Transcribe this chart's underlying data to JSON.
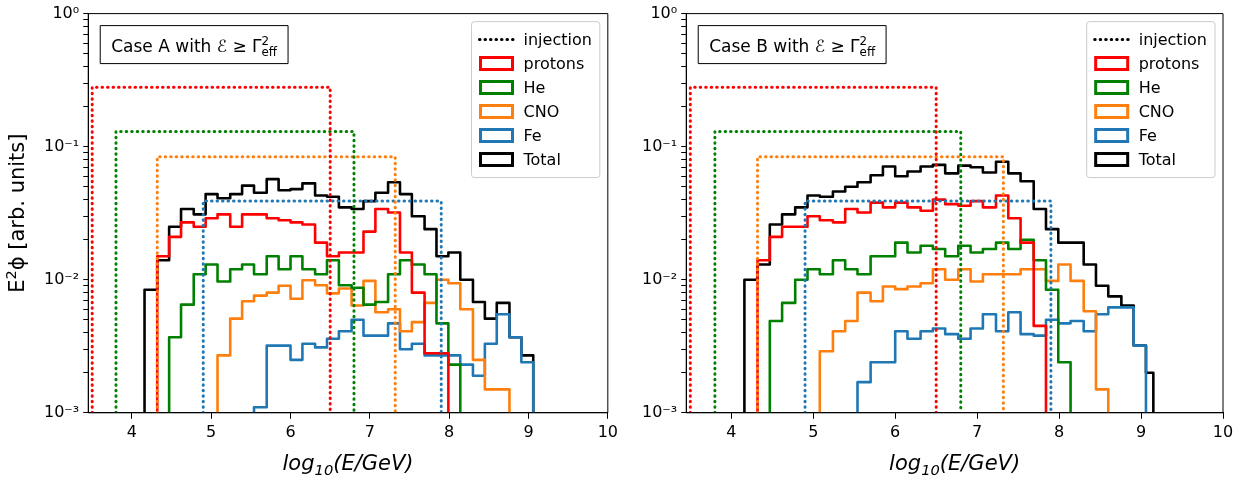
{
  "chart_data": [
    {
      "type": "histogram",
      "xlabel": "log$_{10}$(E/GeV)",
      "ylabel": "E$^{2}$ϕ [arb. units]",
      "annotations": [
        "Case A with ℰ ≥ Γ$^{2}$$_{eff}$"
      ],
      "legend": "top right",
      "log": "y",
      "xlim": [
        3.45,
        10
      ],
      "xticks": [
        4,
        5,
        6,
        7,
        8,
        9,
        10
      ],
      "ylim": [
        0.001,
        1
      ],
      "yticks": [
        {
          "value": 0.001,
          "label": "10⁻³"
        },
        {
          "value": 0.002,
          "label": null
        },
        {
          "value": 0.003,
          "label": null
        },
        {
          "value": 0.004,
          "label": null
        },
        {
          "value": 0.005,
          "label": null
        },
        {
          "value": 0.006,
          "label": null
        },
        {
          "value": 0.007,
          "label": null
        },
        {
          "value": 0.008,
          "label": null
        },
        {
          "value": 0.009,
          "label": null
        },
        {
          "value": 0.01,
          "label": "10⁻²"
        },
        {
          "value": 0.02,
          "label": null
        },
        {
          "value": 0.03,
          "label": null
        },
        {
          "value": 0.04,
          "label": null
        },
        {
          "value": 0.05,
          "label": null
        },
        {
          "value": 0.06,
          "label": null
        },
        {
          "value": 0.07,
          "label": null
        },
        {
          "value": 0.08,
          "label": null
        },
        {
          "value": 0.09,
          "label": null
        },
        {
          "value": 0.1,
          "label": "10⁻¹"
        },
        {
          "value": 0.2,
          "label": null
        },
        {
          "value": 0.3,
          "label": null
        },
        {
          "value": 0.4,
          "label": null
        },
        {
          "value": 0.5,
          "label": null
        },
        {
          "value": 0.6,
          "label": null
        },
        {
          "value": 0.7,
          "label": null
        },
        {
          "value": 0.8,
          "label": null
        },
        {
          "value": 0.9,
          "label": null
        },
        {
          "value": 1,
          "label": "10⁰"
        }
      ],
      "series": [
        {
          "name": "injection",
          "type": "line",
          "line_style": "dotted",
          "color": "#000000"
        },
        {
          "type": "line",
          "line_style": "dotted",
          "color": "#ff0000",
          "x": [
            3.5,
            3.5,
            6.5,
            6.5
          ],
          "values": [
            0.001,
            0.28,
            0.28,
            0.001
          ]
        },
        {
          "type": "line",
          "line_style": "dotted",
          "color": "#008000",
          "x": [
            3.8,
            3.8,
            6.8,
            6.8
          ],
          "values": [
            0.001,
            0.13,
            0.13,
            0.001
          ]
        },
        {
          "type": "line",
          "line_style": "dotted",
          "color": "#ff7f0e",
          "x": [
            4.32,
            4.32,
            7.32,
            7.32
          ],
          "values": [
            0.001,
            0.084,
            0.084,
            0.001
          ]
        },
        {
          "type": "line",
          "line_style": "dotted",
          "color": "#1f77b4",
          "x": [
            4.9,
            4.9,
            7.9,
            7.9
          ],
          "values": [
            0.001,
            0.039,
            0.039,
            0.001
          ]
        },
        {
          "name": "protons",
          "color": "#ff0000",
          "bins": [
            4.32,
            4.47,
            4.62,
            4.78,
            4.93,
            5.08,
            5.24,
            5.39,
            5.54,
            5.7,
            5.85,
            6.0,
            6.15,
            6.31,
            6.46,
            6.61,
            6.77,
            6.92,
            7.07,
            7.23,
            7.38,
            7.53,
            7.69,
            7.84,
            7.99
          ],
          "values": [
            0.015,
            0.021,
            0.027,
            0.025,
            0.029,
            0.031,
            0.025,
            0.031,
            0.031,
            0.029,
            0.028,
            0.027,
            0.026,
            0.019,
            0.015,
            0.016,
            0.016,
            0.023,
            0.034,
            0.032,
            0.016,
            0.008,
            0.0028,
            0.0028
          ]
        },
        {
          "name": "He",
          "color": "#008000",
          "bins": [
            4.47,
            4.62,
            4.78,
            4.93,
            5.08,
            5.24,
            5.39,
            5.54,
            5.7,
            5.85,
            6.0,
            6.15,
            6.31,
            6.46,
            6.61,
            6.77,
            6.92,
            7.07,
            7.23,
            7.38,
            7.53,
            7.69,
            7.84,
            7.99,
            8.14
          ],
          "values": [
            0.0037,
            0.0065,
            0.011,
            0.013,
            0.0097,
            0.012,
            0.013,
            0.011,
            0.015,
            0.012,
            0.015,
            0.012,
            0.011,
            0.014,
            0.0091,
            0.0087,
            0.0065,
            0.0068,
            0.011,
            0.014,
            0.013,
            0.011,
            0.0047,
            0.0023
          ]
        },
        {
          "name": "CNO",
          "color": "#ff7f0e",
          "bins": [
            5.08,
            5.24,
            5.39,
            5.54,
            5.7,
            5.85,
            6.0,
            6.15,
            6.31,
            6.46,
            6.61,
            6.77,
            6.92,
            7.07,
            7.23,
            7.38,
            7.53,
            7.69,
            7.84,
            7.99,
            8.14,
            8.3,
            8.45,
            8.6,
            8.76
          ],
          "values": [
            0.0027,
            0.0051,
            0.0069,
            0.0076,
            0.008,
            0.009,
            0.0072,
            0.0099,
            0.0091,
            0.0079,
            0.0086,
            0.0064,
            0.0098,
            0.0057,
            0.006,
            0.0041,
            0.0048,
            0.0067,
            0.01,
            0.0094,
            0.006,
            0.0025,
            0.0015,
            0.0015
          ]
        },
        {
          "name": "Fe",
          "color": "#1f77b4",
          "bins": [
            5.54,
            5.7,
            5.85,
            6.0,
            6.15,
            6.31,
            6.46,
            6.61,
            6.77,
            6.92,
            7.07,
            7.23,
            7.38,
            7.53,
            7.69,
            7.84,
            7.99,
            8.14,
            8.3,
            8.45,
            8.6,
            8.76,
            8.91,
            9.06
          ],
          "values": [
            0.0011,
            0.0032,
            0.0032,
            0.0025,
            0.0033,
            0.0031,
            0.0036,
            0.0041,
            0.005,
            0.0038,
            0.0038,
            0.0047,
            0.003,
            0.0033,
            0.0027,
            0.0027,
            0.0027,
            0.0023,
            0.0019,
            0.0033,
            0.0055,
            0.0037,
            0.0024
          ]
        },
        {
          "name": "Total",
          "color": "#000000",
          "bins": [
            4.16,
            4.32,
            4.47,
            4.62,
            4.78,
            4.93,
            5.08,
            5.24,
            5.39,
            5.54,
            5.7,
            5.85,
            6.0,
            6.15,
            6.31,
            6.46,
            6.61,
            6.77,
            6.92,
            7.07,
            7.23,
            7.38,
            7.53,
            7.69,
            7.84,
            7.99,
            8.14,
            8.3,
            8.45,
            8.6,
            8.76,
            8.91,
            9.06
          ],
          "values": [
            0.0084,
            0.014,
            0.025,
            0.034,
            0.031,
            0.044,
            0.041,
            0.044,
            0.051,
            0.045,
            0.057,
            0.047,
            0.048,
            0.053,
            0.043,
            0.042,
            0.035,
            0.034,
            0.039,
            0.045,
            0.054,
            0.044,
            0.03,
            0.024,
            0.015,
            0.016,
            0.01,
            0.0068,
            0.0051,
            0.0067,
            0.0037,
            0.0027
          ]
        }
      ]
    },
    {
      "type": "histogram",
      "xlabel": "log$_{10}$(E/GeV)",
      "annotations": [
        "Case B with ℰ ≥ Γ$^{2}$$_{eff}$"
      ],
      "legend": "top right",
      "log": "y",
      "xlim": [
        3.45,
        10
      ],
      "xticks": [
        4,
        5,
        6,
        7,
        8,
        9,
        10
      ],
      "ylim": [
        0.001,
        1
      ],
      "yticks": [
        {
          "value": 0.001,
          "label": "10⁻³"
        },
        {
          "value": 0.002,
          "label": null
        },
        {
          "value": 0.003,
          "label": null
        },
        {
          "value": 0.004,
          "label": null
        },
        {
          "value": 0.005,
          "label": null
        },
        {
          "value": 0.006,
          "label": null
        },
        {
          "value": 0.007,
          "label": null
        },
        {
          "value": 0.008,
          "label": null
        },
        {
          "value": 0.009,
          "label": null
        },
        {
          "value": 0.01,
          "label": "10⁻²"
        },
        {
          "value": 0.02,
          "label": null
        },
        {
          "value": 0.03,
          "label": null
        },
        {
          "value": 0.04,
          "label": null
        },
        {
          "value": 0.05,
          "label": null
        },
        {
          "value": 0.06,
          "label": null
        },
        {
          "value": 0.07,
          "label": null
        },
        {
          "value": 0.08,
          "label": null
        },
        {
          "value": 0.09,
          "label": null
        },
        {
          "value": 0.1,
          "label": "10⁻¹"
        },
        {
          "value": 0.2,
          "label": null
        },
        {
          "value": 0.3,
          "label": null
        },
        {
          "value": 0.4,
          "label": null
        },
        {
          "value": 0.5,
          "label": null
        },
        {
          "value": 0.6,
          "label": null
        },
        {
          "value": 0.7,
          "label": null
        },
        {
          "value": 0.8,
          "label": null
        },
        {
          "value": 0.9,
          "label": null
        },
        {
          "value": 1,
          "label": "10⁰"
        }
      ],
      "series": [
        {
          "name": "injection",
          "type": "line",
          "line_style": "dotted",
          "color": "#000000"
        },
        {
          "type": "line",
          "line_style": "dotted",
          "color": "#ff0000",
          "x": [
            3.5,
            3.5,
            6.5,
            6.5
          ],
          "values": [
            0.001,
            0.28,
            0.28,
            0.001
          ]
        },
        {
          "type": "line",
          "line_style": "dotted",
          "color": "#008000",
          "x": [
            3.8,
            3.8,
            6.8,
            6.8
          ],
          "values": [
            0.001,
            0.13,
            0.13,
            0.001
          ]
        },
        {
          "type": "line",
          "line_style": "dotted",
          "color": "#ff7f0e",
          "x": [
            4.32,
            4.32,
            7.32,
            7.32
          ],
          "values": [
            0.001,
            0.084,
            0.084,
            0.001
          ]
        },
        {
          "type": "line",
          "line_style": "dotted",
          "color": "#1f77b4",
          "x": [
            4.9,
            4.9,
            7.9,
            7.9
          ],
          "values": [
            0.001,
            0.039,
            0.039,
            0.001
          ]
        },
        {
          "name": "protons",
          "color": "#ff0000",
          "bins": [
            4.32,
            4.47,
            4.62,
            4.78,
            4.93,
            5.08,
            5.24,
            5.39,
            5.54,
            5.7,
            5.85,
            6.0,
            6.15,
            6.31,
            6.46,
            6.61,
            6.77,
            6.92,
            7.07,
            7.23,
            7.38,
            7.53,
            7.69,
            7.84
          ],
          "values": [
            0.014,
            0.021,
            0.025,
            0.025,
            0.03,
            0.028,
            0.027,
            0.034,
            0.032,
            0.038,
            0.035,
            0.038,
            0.035,
            0.033,
            0.04,
            0.037,
            0.036,
            0.039,
            0.035,
            0.043,
            0.029,
            0.019,
            0.0045
          ]
        },
        {
          "name": "He",
          "color": "#008000",
          "bins": [
            4.47,
            4.62,
            4.78,
            4.93,
            5.08,
            5.24,
            5.39,
            5.54,
            5.7,
            5.85,
            6.0,
            6.15,
            6.31,
            6.46,
            6.61,
            6.77,
            6.92,
            7.07,
            7.23,
            7.38,
            7.53,
            7.69,
            7.84,
            7.99,
            8.14
          ],
          "values": [
            0.0049,
            0.0067,
            0.01,
            0.012,
            0.011,
            0.014,
            0.012,
            0.011,
            0.015,
            0.015,
            0.019,
            0.016,
            0.018,
            0.017,
            0.015,
            0.018,
            0.016,
            0.017,
            0.019,
            0.017,
            0.02,
            0.014,
            0.0084,
            0.0024
          ]
        },
        {
          "name": "CNO",
          "color": "#ff7f0e",
          "bins": [
            5.08,
            5.24,
            5.39,
            5.54,
            5.7,
            5.85,
            6.0,
            6.15,
            6.31,
            6.46,
            6.61,
            6.77,
            6.92,
            7.07,
            7.23,
            7.38,
            7.53,
            7.69,
            7.84,
            7.99,
            8.14,
            8.3,
            8.45,
            8.6
          ],
          "values": [
            0.0029,
            0.0041,
            0.0049,
            0.008,
            0.0069,
            0.0089,
            0.0085,
            0.0089,
            0.0094,
            0.012,
            0.01,
            0.012,
            0.0097,
            0.011,
            0.011,
            0.011,
            0.012,
            0.012,
            0.0098,
            0.013,
            0.0098,
            0.0058,
            0.0015
          ]
        },
        {
          "name": "Fe",
          "color": "#1f77b4",
          "bins": [
            5.54,
            5.7,
            5.85,
            6.0,
            6.15,
            6.31,
            6.46,
            6.61,
            6.77,
            6.92,
            7.07,
            7.23,
            7.38,
            7.53,
            7.69,
            7.84,
            7.99,
            8.14,
            8.3,
            8.45,
            8.6,
            8.76,
            8.91,
            9.06
          ],
          "values": [
            0.0017,
            0.0024,
            0.0024,
            0.0041,
            0.0036,
            0.0041,
            0.0043,
            0.0039,
            0.0036,
            0.0043,
            0.0055,
            0.0041,
            0.0057,
            0.0039,
            0.0038,
            0.005,
            0.0047,
            0.0049,
            0.0041,
            0.0055,
            0.0062,
            0.0062,
            0.0032
          ]
        },
        {
          "name": "Total",
          "color": "#000000",
          "bins": [
            4.16,
            4.32,
            4.47,
            4.62,
            4.78,
            4.93,
            5.08,
            5.24,
            5.39,
            5.54,
            5.7,
            5.85,
            6.0,
            6.15,
            6.31,
            6.46,
            6.61,
            6.77,
            6.92,
            7.07,
            7.23,
            7.38,
            7.53,
            7.69,
            7.84,
            7.99,
            8.14,
            8.3,
            8.45,
            8.6,
            8.76,
            8.91,
            9.06,
            9.15
          ],
          "values": [
            0.01,
            0.013,
            0.026,
            0.031,
            0.035,
            0.043,
            0.042,
            0.046,
            0.05,
            0.054,
            0.061,
            0.071,
            0.06,
            0.065,
            0.071,
            0.073,
            0.063,
            0.072,
            0.07,
            0.064,
            0.077,
            0.063,
            0.055,
            0.034,
            0.024,
            0.019,
            0.019,
            0.013,
            0.009,
            0.0075,
            0.0064,
            0.0032,
            0.002
          ]
        }
      ]
    }
  ]
}
